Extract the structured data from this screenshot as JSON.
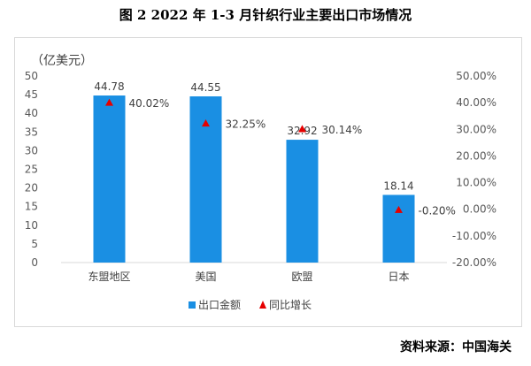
{
  "title": "图 2   2022 年 1-3 月针织行业主要出口市场情况",
  "source": "资料来源：中国海关",
  "chart_data": {
    "type": "bar",
    "categories": [
      "东盟地区",
      "美国",
      "欧盟",
      "日本"
    ],
    "series": [
      {
        "name": "出口金额",
        "values": [
          44.78,
          44.55,
          32.92,
          18.14
        ],
        "labels": [
          "44.78",
          "44.55",
          "32.92",
          "18.14"
        ],
        "color": "#1a8fe3",
        "axis": "left",
        "kind": "bar"
      },
      {
        "name": "同比增长",
        "values": [
          40.02,
          32.25,
          30.14,
          -0.2
        ],
        "labels": [
          "40.02%",
          "32.25%",
          "30.14%",
          "-0.20%"
        ],
        "color": "#e60000",
        "axis": "right",
        "kind": "triangle-marker"
      }
    ],
    "unit_label": "（亿美元）",
    "ylim": [
      0,
      50
    ],
    "yticks": [
      "0",
      "5",
      "10",
      "15",
      "20",
      "25",
      "30",
      "35",
      "40",
      "45",
      "50"
    ],
    "y2lim": [
      -20,
      50
    ],
    "y2ticks": [
      "-20.00%",
      "-10.00%",
      "0.00%",
      "10.00%",
      "20.00%",
      "30.00%",
      "40.00%",
      "50.00%"
    ],
    "legend_position": "bottom",
    "grid": false
  }
}
